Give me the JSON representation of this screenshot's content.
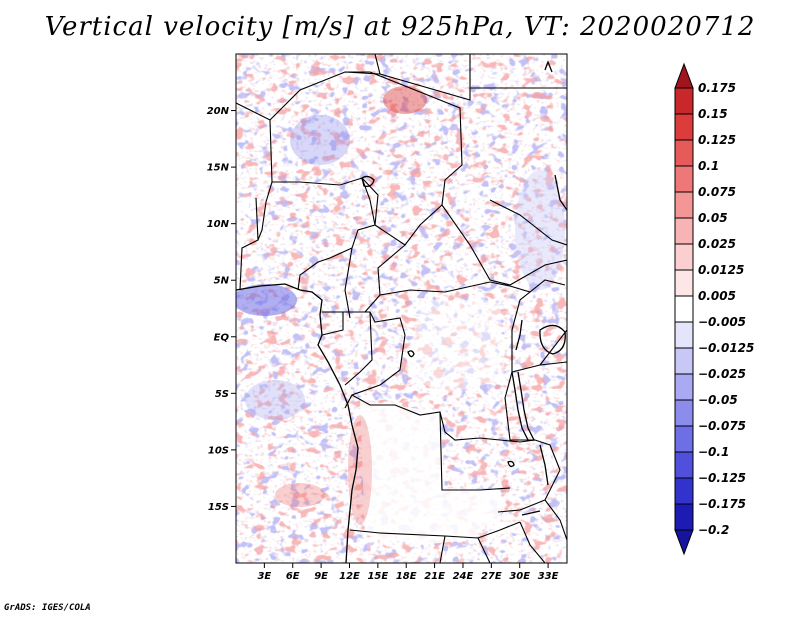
{
  "title": "Vertical velocity [m/s] at 925hPa, VT: 2020020712",
  "credit": "GrADS: IGES/COLA",
  "map": {
    "lat_range": [
      -20,
      25
    ],
    "lon_range": [
      0,
      35
    ],
    "lat_ticks": [
      {
        "value": 20,
        "label": "20N"
      },
      {
        "value": 15,
        "label": "15N"
      },
      {
        "value": 10,
        "label": "10N"
      },
      {
        "value": 5,
        "label": "5N"
      },
      {
        "value": 0,
        "label": "EQ"
      },
      {
        "value": -5,
        "label": "5S"
      },
      {
        "value": -10,
        "label": "10S"
      },
      {
        "value": -15,
        "label": "15S"
      }
    ],
    "lon_ticks": [
      {
        "value": 3,
        "label": "3E"
      },
      {
        "value": 6,
        "label": "6E"
      },
      {
        "value": 9,
        "label": "9E"
      },
      {
        "value": 12,
        "label": "12E"
      },
      {
        "value": 15,
        "label": "15E"
      },
      {
        "value": 18,
        "label": "18E"
      },
      {
        "value": 21,
        "label": "21E"
      },
      {
        "value": 24,
        "label": "24E"
      },
      {
        "value": 27,
        "label": "27E"
      },
      {
        "value": 30,
        "label": "30E"
      },
      {
        "value": 33,
        "label": "33E"
      }
    ]
  },
  "colorbar": {
    "levels": [
      {
        "label": "0.175",
        "color": "#b01418"
      },
      {
        "label": "0.15",
        "color": "#c8282a"
      },
      {
        "label": "0.125",
        "color": "#dc3c3c"
      },
      {
        "label": "0.1",
        "color": "#e65a5a"
      },
      {
        "label": "0.075",
        "color": "#ee7878"
      },
      {
        "label": "0.05",
        "color": "#f49696"
      },
      {
        "label": "0.025",
        "color": "#f8b4b4"
      },
      {
        "label": "0.0125",
        "color": "#fbcfcf"
      },
      {
        "label": "0.005",
        "color": "#fde6e6"
      },
      {
        "label": "−0.005",
        "color": "#ffffff"
      },
      {
        "label": "−0.0125",
        "color": "#e4e4fb"
      },
      {
        "label": "−0.025",
        "color": "#c8c8f7"
      },
      {
        "label": "−0.05",
        "color": "#aaaaf2"
      },
      {
        "label": "−0.075",
        "color": "#8c8ced"
      },
      {
        "label": "−0.1",
        "color": "#6e6ee6"
      },
      {
        "label": "−0.125",
        "color": "#5050dc"
      },
      {
        "label": "−0.175",
        "color": "#3232cc"
      },
      {
        "label": "−0.2",
        "color": "#1c1cb4"
      }
    ],
    "top_extend_color": "#a0141e",
    "bottom_extend_color": "#14149e"
  }
}
